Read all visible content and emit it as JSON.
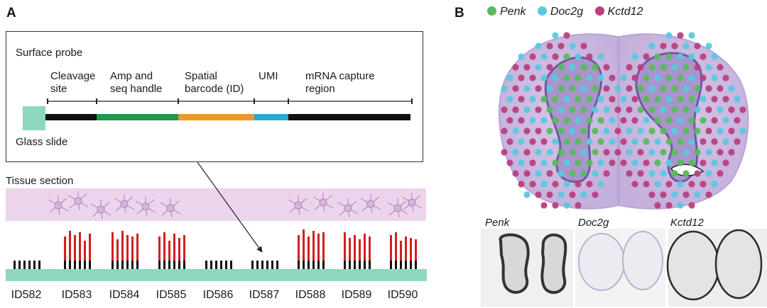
{
  "panel_a": {
    "letter": "A",
    "probe_title": "Surface probe",
    "glass_slide_label": "Glass slide",
    "segments": [
      {
        "name": "cleavage",
        "label_line1": "Cleavage",
        "label_line2": "site",
        "color": "#111111"
      },
      {
        "name": "amp",
        "label_line1": "Amp and",
        "label_line2": "seq handle",
        "color": "#1a9a4a"
      },
      {
        "name": "barcode",
        "label_line1": "Spatial",
        "label_line2": "barcode (ID)",
        "color": "#f0962a"
      },
      {
        "name": "umi",
        "label_line1": "UMI",
        "label_line2": "",
        "color": "#2ea6d8"
      },
      {
        "name": "capture",
        "label_line1": "mRNA capture",
        "label_line2": "region",
        "color": "#111111"
      }
    ],
    "tissue_label": "Tissue section",
    "spot_ids": [
      "ID582",
      "ID583",
      "ID584",
      "ID585",
      "ID586",
      "ID587",
      "ID588",
      "ID589",
      "ID590"
    ],
    "spot_captured": [
      false,
      true,
      true,
      true,
      false,
      false,
      true,
      true,
      true
    ],
    "colors": {
      "slide": "#8fd6c0",
      "tissue": "#ecd5ec",
      "captured": "#d21f1f",
      "probe": "#111111"
    }
  },
  "panel_b": {
    "letter": "B",
    "legend": [
      {
        "gene": "Penk",
        "color": "#5cb85c"
      },
      {
        "gene": "Doc2g",
        "color": "#5bc8e0"
      },
      {
        "gene": "Kctd12",
        "color": "#b8407f"
      }
    ],
    "ish_labels": [
      "Penk",
      "Doc2g",
      "Kctd12"
    ]
  }
}
